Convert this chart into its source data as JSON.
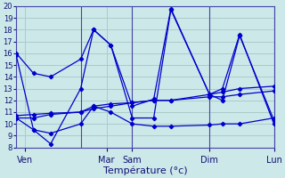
{
  "background_color": "#cce8e8",
  "grid_color": "#aacccc",
  "line_color": "#0000cc",
  "xlabel": "Température (°c)",
  "ylim": [
    8,
    20
  ],
  "yticks": [
    8,
    9,
    10,
    11,
    12,
    13,
    14,
    15,
    16,
    17,
    18,
    19,
    20
  ],
  "xlim": [
    0,
    30
  ],
  "day_lines": [
    7.5,
    13.5,
    22.5,
    30
  ],
  "x_tick_positions": [
    1,
    10.5,
    13.5,
    22.5,
    30
  ],
  "x_tick_labels": [
    "Ven",
    "Mar",
    "Sam",
    "Dim",
    "Lun"
  ],
  "lines": [
    {
      "x": [
        0,
        2,
        4,
        7.5,
        9,
        11,
        13.5,
        16,
        18,
        22.5,
        24,
        26,
        30
      ],
      "y": [
        16.0,
        14.3,
        14.0,
        15.5,
        18.0,
        16.7,
        11.5,
        12.1,
        19.8,
        12.5,
        13.0,
        17.6,
        10.0
      ]
    },
    {
      "x": [
        0,
        2,
        4,
        7.5,
        9,
        11,
        13.5,
        16,
        18,
        22.5,
        24,
        26,
        30
      ],
      "y": [
        15.8,
        9.5,
        8.3,
        13.0,
        18.0,
        16.7,
        10.5,
        10.5,
        19.7,
        12.5,
        12.0,
        17.5,
        10.3
      ]
    },
    {
      "x": [
        0,
        2,
        4,
        7.5,
        9,
        11,
        13.5,
        16,
        18,
        22.5,
        24,
        26,
        30
      ],
      "y": [
        10.5,
        10.5,
        10.8,
        11.0,
        11.3,
        11.5,
        11.8,
        12.0,
        12.0,
        12.5,
        12.7,
        13.0,
        13.2
      ]
    },
    {
      "x": [
        0,
        2,
        4,
        7.5,
        9,
        11,
        13.5,
        16,
        18,
        22.5,
        24,
        26,
        30
      ],
      "y": [
        10.5,
        9.5,
        9.2,
        10.0,
        11.5,
        11.0,
        10.0,
        9.8,
        9.8,
        9.9,
        10.0,
        10.0,
        10.5
      ]
    },
    {
      "x": [
        0,
        2,
        4,
        7.5,
        9,
        11,
        13.5,
        16,
        18,
        22.5,
        24,
        26,
        30
      ],
      "y": [
        10.7,
        10.8,
        10.9,
        11.0,
        11.5,
        11.7,
        11.8,
        12.0,
        12.0,
        12.3,
        12.3,
        12.5,
        12.8
      ]
    }
  ],
  "ytick_fontsize": 6,
  "xtick_fontsize": 7
}
